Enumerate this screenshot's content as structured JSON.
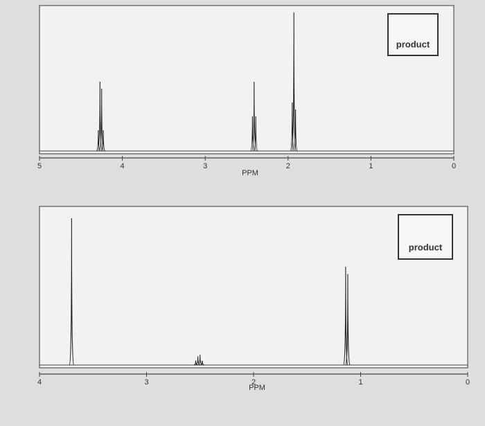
{
  "chart_data": [
    {
      "type": "spectrum",
      "xlabel": "PPM",
      "annotation": "product",
      "xlim": [
        5,
        0
      ],
      "xticks": [
        5,
        4,
        3,
        2,
        1,
        0
      ],
      "x": [
        4.29,
        4.27,
        4.25,
        4.23,
        2.43,
        2.41,
        2.39,
        1.95,
        1.93,
        1.91
      ],
      "values": [
        0.15,
        0.5,
        0.45,
        0.15,
        0.25,
        0.5,
        0.25,
        0.35,
        1.0,
        0.3
      ],
      "color": "#222222"
    },
    {
      "type": "spectrum",
      "xlabel": "PPM",
      "annotation": "product",
      "xlim": [
        4,
        0
      ],
      "xticks": [
        4,
        3,
        2,
        1,
        0
      ],
      "x": [
        3.7,
        2.54,
        2.52,
        2.5,
        2.48,
        1.14,
        1.12
      ],
      "values": [
        1.0,
        0.03,
        0.06,
        0.07,
        0.03,
        0.67,
        0.62
      ],
      "color": "#222222"
    }
  ]
}
